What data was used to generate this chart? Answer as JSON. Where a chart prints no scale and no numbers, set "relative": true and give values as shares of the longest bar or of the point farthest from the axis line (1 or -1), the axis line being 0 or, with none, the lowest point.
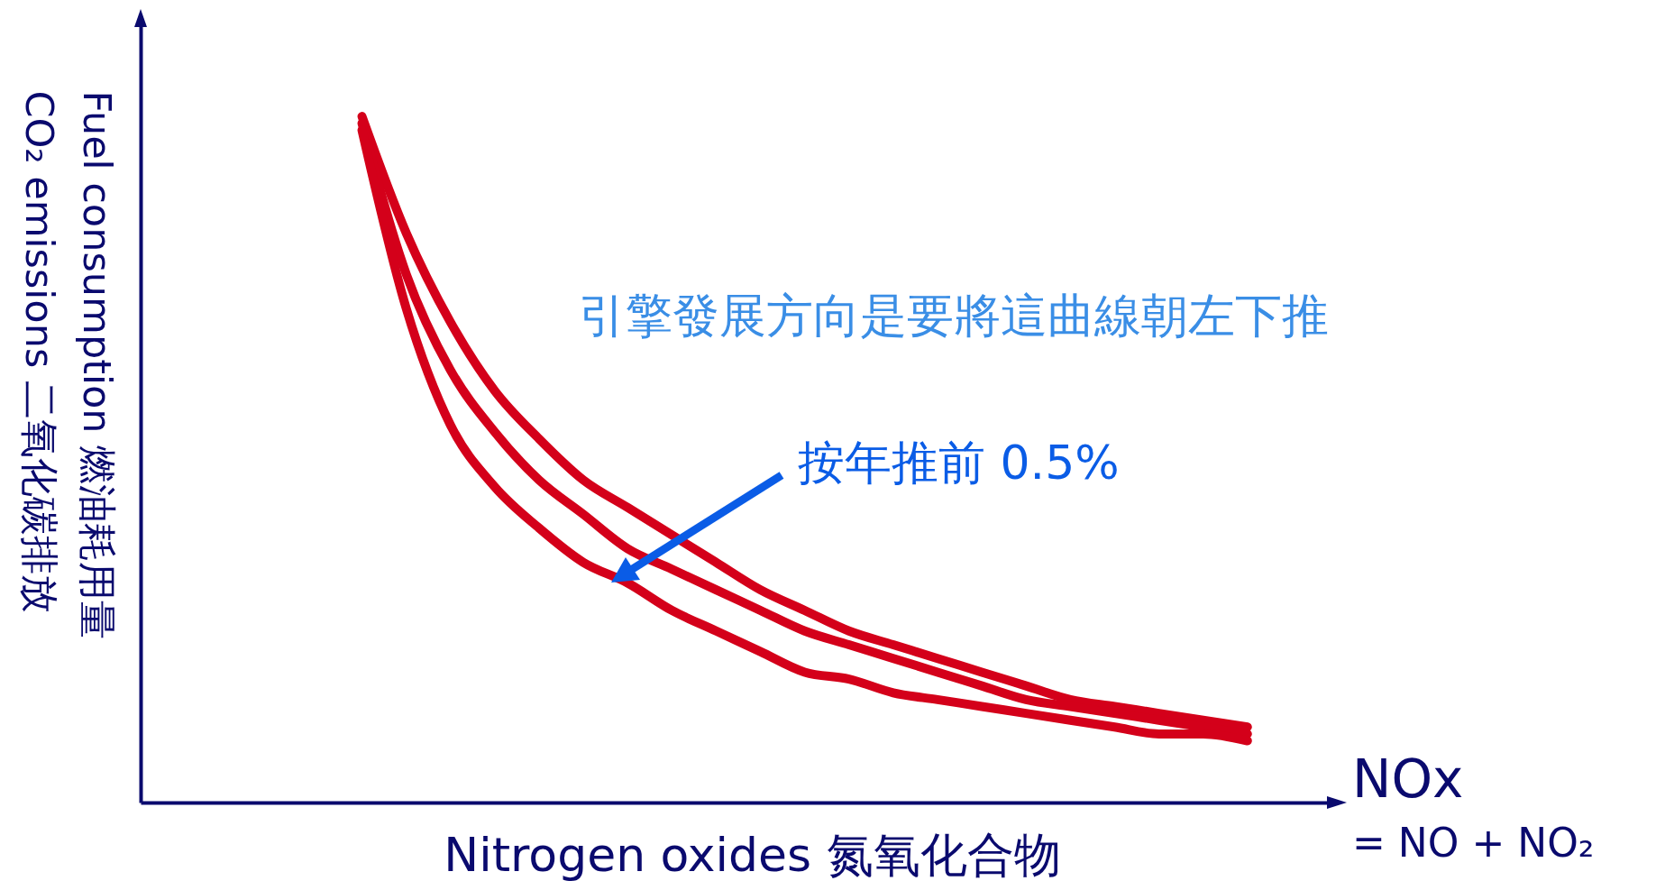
{
  "chart_data": {
    "type": "line",
    "relative": true,
    "xlabel": "Nitrogen oxides 氮氧化合物",
    "ylabel": "Fuel consumption 燃油耗用量\nCO₂ emissions 二氧化碳排放",
    "categories": [
      null,
      null,
      null,
      null,
      null,
      null,
      null,
      null,
      null,
      null,
      null,
      null,
      null,
      null,
      null,
      null,
      null,
      null,
      null,
      null,
      null,
      null,
      null,
      null,
      null,
      null,
      null,
      null
    ],
    "series": [
      {
        "color": "#d4001a",
        "values": [
          null,
          null,
          null,
          null,
          null,
          1.0,
          0.83,
          0.7,
          0.6,
          0.53,
          0.47,
          0.43,
          0.39,
          0.35,
          0.31,
          0.28,
          0.25,
          0.23,
          0.21,
          0.19,
          0.17,
          0.15,
          0.14,
          0.13,
          0.12,
          0.11,
          null,
          null
        ]
      },
      {
        "color": "#d4001a",
        "values": [
          null,
          null,
          null,
          null,
          null,
          0.99,
          0.77,
          0.63,
          0.54,
          0.47,
          0.42,
          0.37,
          0.34,
          0.31,
          0.28,
          0.25,
          0.23,
          0.21,
          0.19,
          0.17,
          0.15,
          0.14,
          0.13,
          0.12,
          0.11,
          0.1,
          null,
          null
        ]
      },
      {
        "color": "#d4001a",
        "values": [
          null,
          null,
          null,
          null,
          null,
          0.98,
          0.72,
          0.55,
          0.46,
          0.4,
          0.35,
          0.32,
          0.28,
          0.25,
          0.22,
          0.19,
          0.18,
          0.16,
          0.15,
          0.14,
          0.13,
          0.12,
          0.11,
          0.1,
          0.1,
          0.09,
          null,
          null
        ]
      }
    ],
    "annotations": [
      "引擎發展方向是要將這曲線朝左下推",
      "按年推前 0.5%",
      "NOx",
      "= NO + NO₂"
    ],
    "grid": false
  }
}
